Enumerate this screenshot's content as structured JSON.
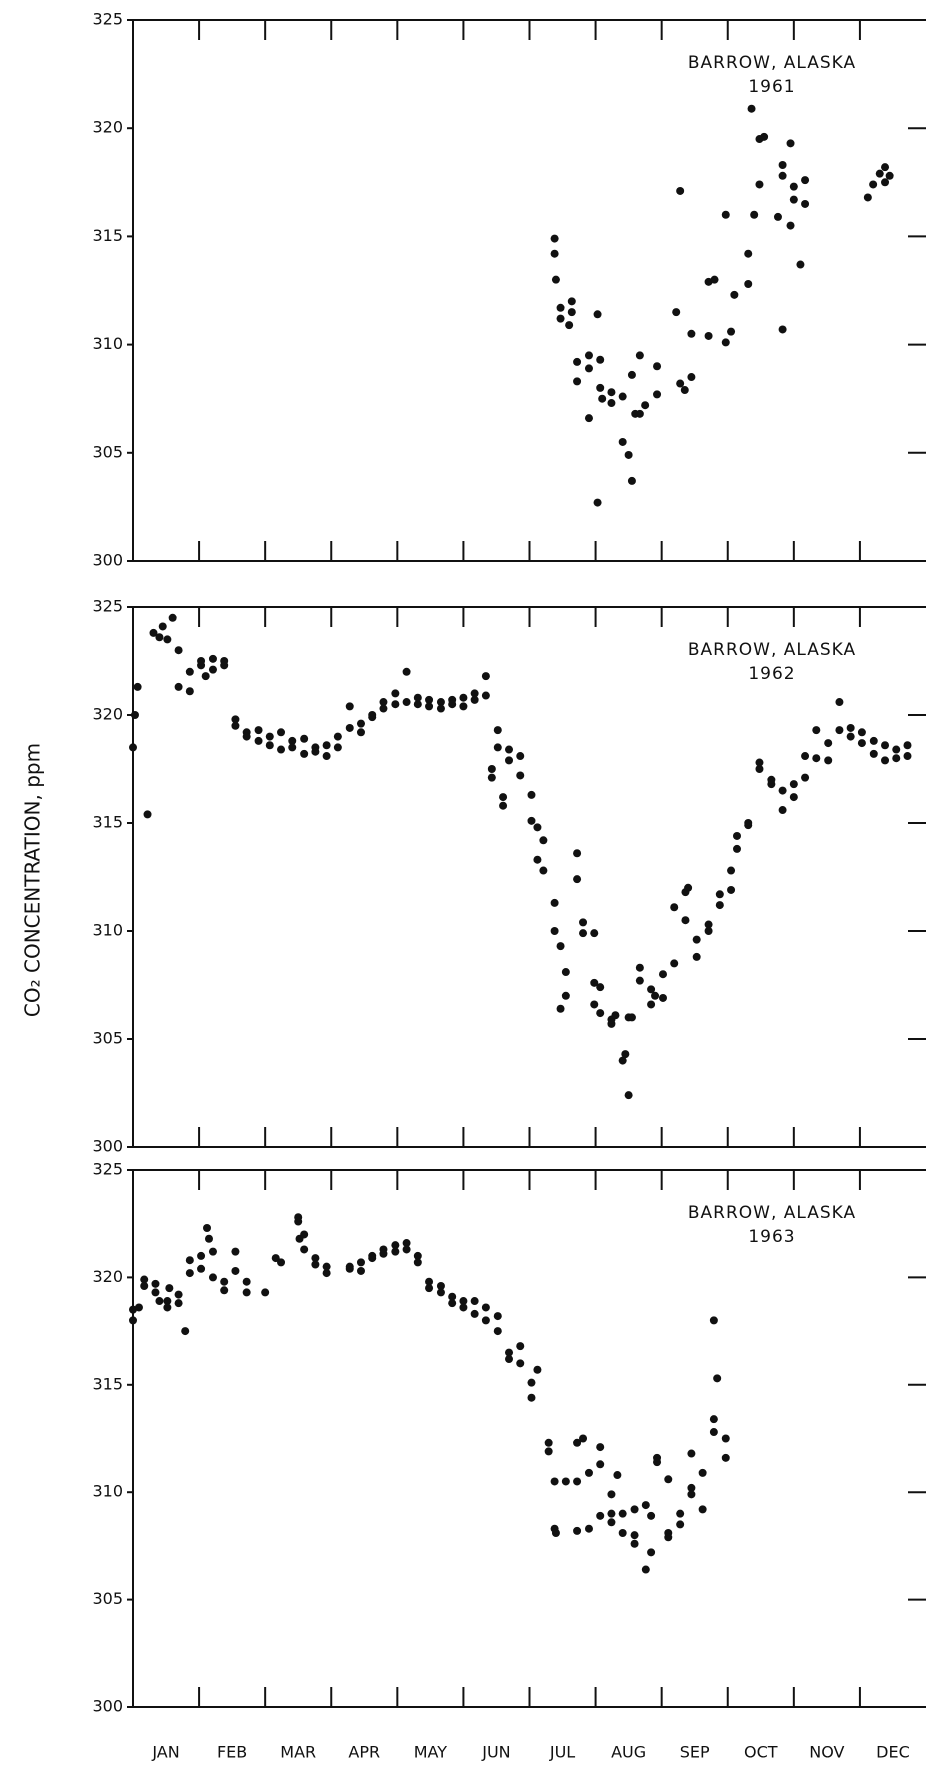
{
  "y_axis_label": "CO₂ CONCENTRATION, ppm",
  "chart_data": [
    {
      "type": "scatter",
      "annotation": "BARROW, ALASKA",
      "year": "1961",
      "xlim": [
        0,
        12
      ],
      "ylim": [
        300,
        325
      ],
      "yticks": [
        300,
        305,
        310,
        315,
        320,
        325
      ],
      "x": [
        6.38,
        6.38,
        6.4,
        6.47,
        6.47,
        6.64,
        6.64,
        6.6,
        6.72,
        6.72,
        6.9,
        6.9,
        6.9,
        7.03,
        7.07,
        7.07,
        7.1,
        7.03,
        7.24,
        7.24,
        7.41,
        7.41,
        7.5,
        7.55,
        7.6,
        7.55,
        7.67,
        7.67,
        7.75,
        7.93,
        7.93,
        8.22,
        8.28,
        8.28,
        8.35,
        8.45,
        8.45,
        8.71,
        8.71,
        8.8,
        8.97,
        8.97,
        9.05,
        9.1,
        9.31,
        9.31,
        9.4,
        9.48,
        9.36,
        9.48,
        9.55,
        9.83,
        9.83,
        9.76,
        9.95,
        10.0,
        10.0,
        9.95,
        9.83,
        10.17,
        10.1,
        10.17,
        11.12,
        11.2,
        11.3,
        11.38,
        11.38,
        11.45
      ],
      "values": [
        314.9,
        314.2,
        313.0,
        311.2,
        311.7,
        312.0,
        311.5,
        310.9,
        309.2,
        308.3,
        309.5,
        308.9,
        306.6,
        302.7,
        309.3,
        308.0,
        307.5,
        311.4,
        307.3,
        307.8,
        307.6,
        305.5,
        304.9,
        303.7,
        306.8,
        308.6,
        309.5,
        306.8,
        307.2,
        307.7,
        309.0,
        311.5,
        317.1,
        308.2,
        307.9,
        308.5,
        310.5,
        310.4,
        312.9,
        313.0,
        316.0,
        310.1,
        310.6,
        312.3,
        312.8,
        314.2,
        316.0,
        317.4,
        320.9,
        319.5,
        319.6,
        318.3,
        317.8,
        315.9,
        319.3,
        317.3,
        316.7,
        315.5,
        310.7,
        316.5,
        313.7,
        317.6,
        316.8,
        317.4,
        317.9,
        318.2,
        317.5,
        317.8
      ]
    },
    {
      "type": "scatter",
      "annotation": "BARROW, ALASKA",
      "year": "1962",
      "xlim": [
        0,
        12
      ],
      "ylim": [
        300,
        325
      ],
      "yticks": [
        300,
        305,
        310,
        315,
        320,
        325
      ],
      "x": [
        0.0,
        0.03,
        0.07,
        0.22,
        0.31,
        0.4,
        0.45,
        0.52,
        0.6,
        0.69,
        0.69,
        0.86,
        0.86,
        1.03,
        1.03,
        1.1,
        1.21,
        1.21,
        1.38,
        1.38,
        1.55,
        1.55,
        1.72,
        1.72,
        1.9,
        1.9,
        2.07,
        2.07,
        2.24,
        2.24,
        2.41,
        2.41,
        2.59,
        2.59,
        2.76,
        2.76,
        2.93,
        2.93,
        3.1,
        3.1,
        3.28,
        3.28,
        3.45,
        3.45,
        3.62,
        3.62,
        3.79,
        3.79,
        3.97,
        3.97,
        4.14,
        4.14,
        4.31,
        4.31,
        4.48,
        4.48,
        4.66,
        4.66,
        4.83,
        4.83,
        5.0,
        5.0,
        5.17,
        5.17,
        5.34,
        5.34,
        5.43,
        5.43,
        5.52,
        5.52,
        5.6,
        5.6,
        5.69,
        5.69,
        5.86,
        5.86,
        6.03,
        6.03,
        6.12,
        6.12,
        6.21,
        6.21,
        6.38,
        6.38,
        6.47,
        6.47,
        6.55,
        6.55,
        6.72,
        6.72,
        6.81,
        6.81,
        6.98,
        6.98,
        6.98,
        7.07,
        7.07,
        7.24,
        7.24,
        7.3,
        7.41,
        7.45,
        7.5,
        7.5,
        7.55,
        7.67,
        7.67,
        7.84,
        7.84,
        7.9,
        8.02,
        8.02,
        8.19,
        8.19,
        8.36,
        8.36,
        8.4,
        8.53,
        8.53,
        8.71,
        8.71,
        8.88,
        8.88,
        9.05,
        9.05,
        9.14,
        9.14,
        9.31,
        9.31,
        9.48,
        9.48,
        9.66,
        9.66,
        9.83,
        9.83,
        10.0,
        10.0,
        10.17,
        10.17,
        10.34,
        10.34,
        10.52,
        10.52,
        10.69,
        10.69,
        10.86,
        10.86,
        11.03,
        11.03,
        11.21,
        11.21,
        11.38,
        11.38,
        11.55,
        11.55,
        11.72,
        11.72
      ],
      "values": [
        318.5,
        320.0,
        321.3,
        315.4,
        323.8,
        323.6,
        324.1,
        323.5,
        324.5,
        323.0,
        321.3,
        322.0,
        321.1,
        322.3,
        322.5,
        321.8,
        322.6,
        322.1,
        322.5,
        322.3,
        319.5,
        319.8,
        319.2,
        319.0,
        319.3,
        318.8,
        319.0,
        318.6,
        318.4,
        319.2,
        318.8,
        318.5,
        318.9,
        318.2,
        318.5,
        318.3,
        318.6,
        318.1,
        319.0,
        318.5,
        319.4,
        320.4,
        319.2,
        319.6,
        319.9,
        320.0,
        320.3,
        320.6,
        320.5,
        321.0,
        320.6,
        322.0,
        320.5,
        320.8,
        320.7,
        320.4,
        320.6,
        320.3,
        320.7,
        320.5,
        320.4,
        320.8,
        321.0,
        320.7,
        321.8,
        320.9,
        317.5,
        317.1,
        318.5,
        319.3,
        316.2,
        315.8,
        318.4,
        317.9,
        318.1,
        317.2,
        316.3,
        315.1,
        314.8,
        313.3,
        314.2,
        312.8,
        311.3,
        310.0,
        309.3,
        306.4,
        308.1,
        307.0,
        313.6,
        312.4,
        310.4,
        309.9,
        309.9,
        307.6,
        306.6,
        307.4,
        306.2,
        305.7,
        305.9,
        306.1,
        304.0,
        304.3,
        302.4,
        306.0,
        306.0,
        308.3,
        307.7,
        307.3,
        306.6,
        307.0,
        308.0,
        306.9,
        308.5,
        311.1,
        310.5,
        311.8,
        312.0,
        308.8,
        309.6,
        310.3,
        310.0,
        311.2,
        311.7,
        311.9,
        312.8,
        313.8,
        314.4,
        314.9,
        315.0,
        317.5,
        317.8,
        316.8,
        317.0,
        316.5,
        315.6,
        316.2,
        316.8,
        317.1,
        318.1,
        318.0,
        319.3,
        318.7,
        317.9,
        319.3,
        320.6,
        319.4,
        319.0,
        319.2,
        318.7,
        318.8,
        318.2,
        318.6,
        317.9,
        318.4,
        318.0,
        318.6,
        318.1
      ]
    },
    {
      "type": "scatter",
      "annotation": "BARROW, ALASKA",
      "year": "1963",
      "xlim": [
        0,
        12
      ],
      "ylim": [
        300,
        325
      ],
      "yticks": [
        300,
        305,
        310,
        315,
        320,
        325
      ],
      "categories": [
        "JAN",
        "FEB",
        "MAR",
        "APR",
        "MAY",
        "JUN",
        "JUL",
        "AUG",
        "SEP",
        "OCT",
        "NOV",
        "DEC"
      ],
      "x": [
        0.0,
        0.0,
        0.09,
        0.17,
        0.17,
        0.34,
        0.34,
        0.4,
        0.52,
        0.52,
        0.55,
        0.69,
        0.69,
        0.79,
        0.86,
        0.86,
        1.03,
        1.03,
        1.12,
        1.15,
        1.21,
        1.21,
        1.38,
        1.38,
        1.55,
        1.55,
        1.72,
        1.72,
        2.0,
        2.16,
        2.24,
        2.5,
        2.5,
        2.52,
        2.59,
        2.59,
        2.76,
        2.76,
        2.93,
        2.93,
        3.28,
        3.28,
        3.45,
        3.45,
        3.62,
        3.62,
        3.79,
        3.79,
        3.97,
        3.97,
        4.14,
        4.14,
        4.31,
        4.31,
        4.48,
        4.48,
        4.66,
        4.66,
        4.83,
        4.83,
        5.0,
        5.0,
        5.17,
        5.17,
        5.34,
        5.34,
        5.52,
        5.52,
        5.69,
        5.69,
        5.86,
        5.86,
        6.03,
        6.03,
        6.12,
        6.29,
        6.29,
        6.38,
        6.38,
        6.4,
        6.55,
        6.72,
        6.72,
        6.72,
        6.81,
        6.9,
        6.9,
        7.07,
        7.07,
        7.07,
        7.24,
        7.24,
        7.24,
        7.33,
        7.41,
        7.41,
        7.59,
        7.59,
        7.59,
        7.76,
        7.76,
        7.84,
        7.84,
        7.93,
        7.93,
        8.1,
        8.1,
        8.1,
        8.28,
        8.28,
        8.45,
        8.45,
        8.45,
        8.62,
        8.62,
        8.79,
        8.79,
        8.84,
        8.79,
        8.97,
        8.97
      ],
      "values": [
        318.5,
        318.0,
        318.6,
        319.9,
        319.6,
        319.7,
        319.3,
        318.9,
        318.9,
        318.6,
        319.5,
        318.8,
        319.2,
        317.5,
        320.2,
        320.8,
        321.0,
        320.4,
        322.3,
        321.8,
        321.2,
        320.0,
        319.8,
        319.4,
        320.3,
        321.2,
        319.8,
        319.3,
        319.3,
        320.9,
        320.7,
        322.6,
        322.8,
        321.8,
        322.0,
        321.3,
        320.9,
        320.6,
        320.5,
        320.2,
        320.4,
        320.5,
        320.7,
        320.3,
        321.0,
        320.9,
        321.3,
        321.1,
        321.2,
        321.5,
        321.6,
        321.3,
        321.0,
        320.7,
        319.8,
        319.5,
        319.3,
        319.6,
        319.1,
        318.8,
        318.9,
        318.6,
        318.3,
        318.9,
        318.6,
        318.0,
        317.5,
        318.2,
        316.5,
        316.2,
        316.0,
        316.8,
        315.1,
        314.4,
        315.7,
        312.3,
        311.9,
        310.5,
        308.3,
        308.1,
        310.5,
        312.3,
        310.5,
        308.2,
        312.5,
        310.9,
        308.3,
        312.1,
        311.3,
        308.9,
        309.9,
        309.0,
        308.6,
        310.8,
        309.0,
        308.1,
        309.2,
        308.0,
        307.6,
        309.4,
        306.4,
        308.9,
        307.2,
        311.4,
        311.6,
        308.1,
        307.9,
        310.6,
        308.5,
        309.0,
        311.8,
        310.2,
        309.9,
        310.9,
        309.2,
        318.0,
        313.4,
        315.3,
        312.8,
        312.5,
        311.6
      ]
    }
  ]
}
